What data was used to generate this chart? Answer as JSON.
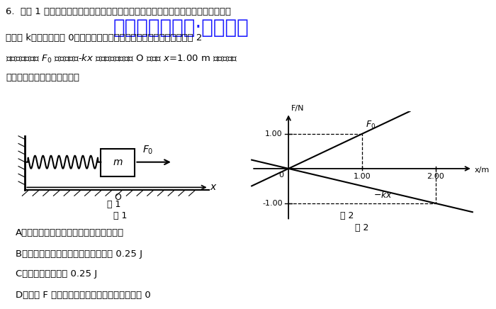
{
  "question_text_line1": "6.  如图 1 所示，在光滑水平地面上，有一轻弹簧与物块连接组成的系统，弹簧的劲度",
  "question_text_line2": "系数为 k，图的位置为 0，若对物块在平衡位置的拉动，使物块受到如图 2",
  "question_text_line3": "所示的水平拉力 F₀ 与弹簧弹力-kx 作用，由平衡位置 O 移动至 x=1.00 m 处，下列关",
  "question_text_line4": "于此运动过程的说法正确的是",
  "watermark": "微信公众号关注·题找答案",
  "fig1_caption": "图 1",
  "fig2_caption": "图 2",
  "graph_xlabel": "x/m",
  "graph_ylabel": "F/N",
  "F0_label": "F₀",
  "kx_label": "-kx",
  "choices": [
    "A．物块的加速度越来越小，速率越来越小",
    "B．弹簧与物块组成的系统的势能减少 0.25 J",
    "C．物块的动能增加 0.25 J",
    "D．拉力 F 与弹簧弹力的合力对物块所做的功为 0"
  ],
  "bg_color": "#ffffff",
  "text_color": "#000000",
  "watermark_color": "#1a1aff"
}
